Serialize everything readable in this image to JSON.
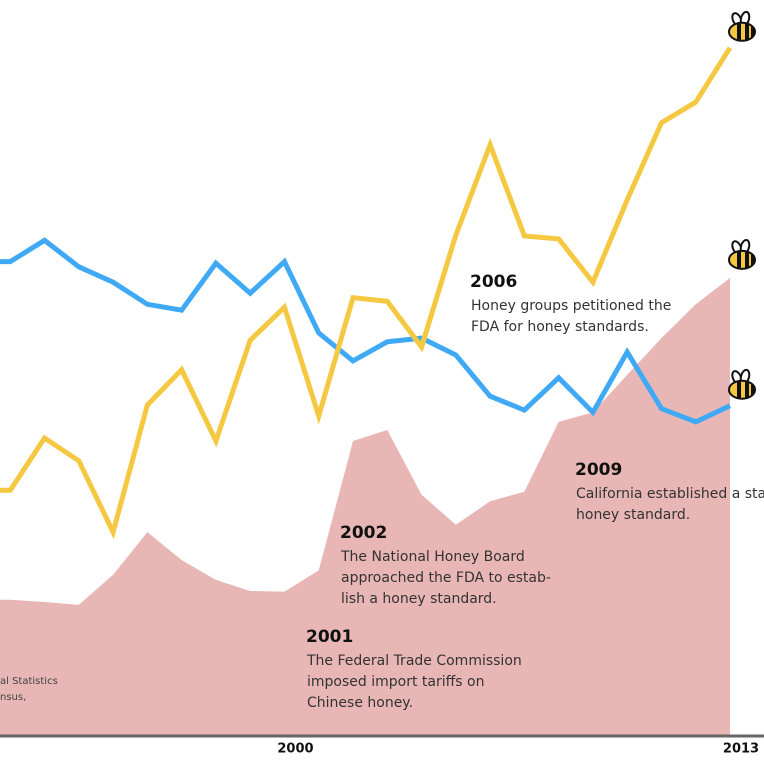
{
  "chart_data": {
    "type": "line",
    "x": [
      1992,
      1993,
      1994,
      1995,
      1996,
      1997,
      1998,
      1999,
      2000,
      2001,
      2002,
      2003,
      2004,
      2005,
      2006,
      2007,
      2008,
      2009,
      2010,
      2011,
      2012,
      2013
    ],
    "xlim": [
      1991.7,
      2013
    ],
    "xticks": [
      2000,
      2013
    ],
    "ylim": [
      0,
      100
    ],
    "series": [
      {
        "kind": "area",
        "color": "#e8b7b5",
        "values": [
          18.4,
          18.1,
          17.7,
          21.8,
          27.6,
          23.8,
          21.1,
          19.6,
          19.5,
          22.4,
          40.0,
          41.5,
          32.7,
          28.6,
          31.8,
          33.1,
          42.6,
          43.9,
          49.0,
          54.0,
          58.6,
          62.2
        ]
      },
      {
        "kind": "line",
        "color": "#3fa9f5",
        "values": [
          64.4,
          67.3,
          63.7,
          61.6,
          58.6,
          57.8,
          64.2,
          60.1,
          64.4,
          54.7,
          50.9,
          53.5,
          54.0,
          51.7,
          46.1,
          44.2,
          48.6,
          43.9,
          52.1,
          44.4,
          42.6,
          44.8
        ]
      },
      {
        "kind": "line",
        "color": "#f5c842",
        "values": [
          33.3,
          40.4,
          37.3,
          27.6,
          44.9,
          49.7,
          40.0,
          53.7,
          58.2,
          43.4,
          59.5,
          59.0,
          52.8,
          68.0,
          80.3,
          67.9,
          67.5,
          61.6,
          72.8,
          83.3,
          86.1,
          93.5
        ]
      }
    ],
    "annotations": [
      {
        "title": "2006",
        "lines": [
          "Honey groups petitioned the",
          "FDA for honey standards."
        ]
      },
      {
        "title": "2009",
        "lines": [
          "California established a sta",
          "honey standard."
        ]
      },
      {
        "title": "2002",
        "lines": [
          "The National Honey Board",
          "approached the FDA to estab-",
          "lish a honey standard."
        ]
      },
      {
        "title": "2001",
        "lines": [
          "The Federal Trade Commission",
          "imposed import tariffs on",
          "Chinese honey."
        ]
      }
    ],
    "source": [
      "al Statistics",
      "nsus,"
    ]
  }
}
